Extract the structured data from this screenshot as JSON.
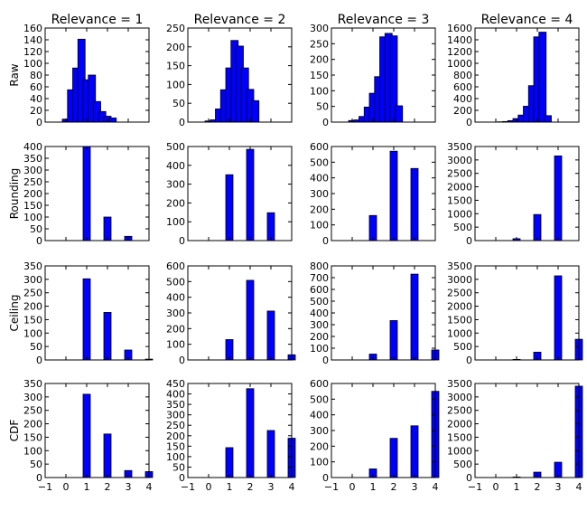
{
  "chart_data": {
    "type": "bar",
    "bar_color": "#0000ff",
    "bar_edge_color": "#000000",
    "grid": false,
    "columns": [
      "Relevance = 1",
      "Relevance = 2",
      "Relevance = 3",
      "Relevance = 4"
    ],
    "rows": [
      "Raw",
      "Rounding",
      "Ceiling",
      "CDF"
    ],
    "xlim": [
      -1,
      4
    ],
    "xticks": [
      -1,
      0,
      1,
      2,
      3,
      4
    ],
    "panels": [
      [
        {
          "ylim": [
            0,
            160
          ],
          "yticks": [
            0,
            20,
            40,
            60,
            80,
            100,
            120,
            140,
            160
          ],
          "bars": [
            {
              "x": 0.0,
              "value": 5
            },
            {
              "x": 0.25,
              "value": 55
            },
            {
              "x": 0.5,
              "value": 92
            },
            {
              "x": 0.75,
              "value": 141
            },
            {
              "x": 1.0,
              "value": 72
            },
            {
              "x": 1.25,
              "value": 80
            },
            {
              "x": 1.5,
              "value": 35
            },
            {
              "x": 1.75,
              "value": 18
            },
            {
              "x": 2.0,
              "value": 10
            },
            {
              "x": 2.25,
              "value": 7
            }
          ]
        },
        {
          "ylim": [
            0,
            250
          ],
          "yticks": [
            0,
            50,
            100,
            150,
            200,
            250
          ],
          "bars": [
            {
              "x": 0.0,
              "value": 3
            },
            {
              "x": 0.25,
              "value": 6
            },
            {
              "x": 0.5,
              "value": 35
            },
            {
              "x": 0.75,
              "value": 86
            },
            {
              "x": 1.0,
              "value": 144
            },
            {
              "x": 1.25,
              "value": 217
            },
            {
              "x": 1.5,
              "value": 202
            },
            {
              "x": 1.75,
              "value": 144
            },
            {
              "x": 2.0,
              "value": 87
            },
            {
              "x": 2.25,
              "value": 57
            }
          ]
        },
        {
          "ylim": [
            0,
            300
          ],
          "yticks": [
            0,
            50,
            100,
            150,
            200,
            250,
            300
          ],
          "bars": [
            {
              "x": 0.0,
              "value": 5
            },
            {
              "x": 0.25,
              "value": 7
            },
            {
              "x": 0.5,
              "value": 18
            },
            {
              "x": 0.75,
              "value": 48
            },
            {
              "x": 1.0,
              "value": 92
            },
            {
              "x": 1.25,
              "value": 145
            },
            {
              "x": 1.5,
              "value": 272
            },
            {
              "x": 1.75,
              "value": 283
            },
            {
              "x": 2.0,
              "value": 275
            },
            {
              "x": 2.25,
              "value": 52
            }
          ]
        },
        {
          "ylim": [
            0,
            1600
          ],
          "yticks": [
            0,
            200,
            400,
            600,
            800,
            1000,
            1200,
            1400,
            1600
          ],
          "bars": [
            {
              "x": 0.0,
              "value": 0
            },
            {
              "x": 0.25,
              "value": 5
            },
            {
              "x": 0.5,
              "value": 10
            },
            {
              "x": 0.75,
              "value": 25
            },
            {
              "x": 1.0,
              "value": 60
            },
            {
              "x": 1.25,
              "value": 120
            },
            {
              "x": 1.5,
              "value": 270
            },
            {
              "x": 1.75,
              "value": 620
            },
            {
              "x": 2.0,
              "value": 1450
            },
            {
              "x": 2.25,
              "value": 1530
            },
            {
              "x": 2.5,
              "value": 110
            }
          ]
        }
      ],
      [
        {
          "ylim": [
            0,
            400
          ],
          "yticks": [
            0,
            50,
            100,
            150,
            200,
            250,
            300,
            350,
            400
          ],
          "bars": [
            {
              "x": 1,
              "value": 400
            },
            {
              "x": 2,
              "value": 100
            },
            {
              "x": 3,
              "value": 18
            }
          ]
        },
        {
          "ylim": [
            0,
            500
          ],
          "yticks": [
            0,
            100,
            200,
            300,
            400,
            500
          ],
          "bars": [
            {
              "x": 1,
              "value": 350
            },
            {
              "x": 2,
              "value": 485
            },
            {
              "x": 3,
              "value": 148
            }
          ]
        },
        {
          "ylim": [
            0,
            600
          ],
          "yticks": [
            0,
            100,
            200,
            300,
            400,
            500,
            600
          ],
          "bars": [
            {
              "x": 1,
              "value": 160
            },
            {
              "x": 2,
              "value": 570
            },
            {
              "x": 3,
              "value": 460
            }
          ]
        },
        {
          "ylim": [
            0,
            3500
          ],
          "yticks": [
            0,
            500,
            1000,
            1500,
            2000,
            2500,
            3000,
            3500
          ],
          "bars": [
            {
              "x": 1,
              "value": 70
            },
            {
              "x": 2,
              "value": 970
            },
            {
              "x": 3,
              "value": 3150
            }
          ]
        }
      ],
      [
        {
          "ylim": [
            0,
            350
          ],
          "yticks": [
            0,
            50,
            100,
            150,
            200,
            250,
            300,
            350
          ],
          "bars": [
            {
              "x": 1,
              "value": 302
            },
            {
              "x": 2,
              "value": 177
            },
            {
              "x": 3,
              "value": 37
            },
            {
              "x": 4,
              "value": 3
            }
          ]
        },
        {
          "ylim": [
            0,
            600
          ],
          "yticks": [
            0,
            100,
            200,
            300,
            400,
            500,
            600
          ],
          "bars": [
            {
              "x": 1,
              "value": 130
            },
            {
              "x": 2,
              "value": 508
            },
            {
              "x": 3,
              "value": 312
            },
            {
              "x": 4,
              "value": 33
            }
          ]
        },
        {
          "ylim": [
            0,
            800
          ],
          "yticks": [
            0,
            100,
            200,
            300,
            400,
            500,
            600,
            700,
            800
          ],
          "bars": [
            {
              "x": 1,
              "value": 50
            },
            {
              "x": 2,
              "value": 335
            },
            {
              "x": 3,
              "value": 730
            },
            {
              "x": 4,
              "value": 85
            }
          ]
        },
        {
          "ylim": [
            0,
            3500
          ],
          "yticks": [
            0,
            500,
            1000,
            1500,
            2000,
            2500,
            3000,
            3500
          ],
          "bars": [
            {
              "x": 1,
              "value": 20
            },
            {
              "x": 2,
              "value": 290
            },
            {
              "x": 3,
              "value": 3130
            },
            {
              "x": 4,
              "value": 770
            }
          ]
        }
      ],
      [
        {
          "ylim": [
            0,
            350
          ],
          "yticks": [
            0,
            50,
            100,
            150,
            200,
            250,
            300,
            350
          ],
          "bars": [
            {
              "x": 1,
              "value": 310
            },
            {
              "x": 2,
              "value": 162
            },
            {
              "x": 3,
              "value": 26
            },
            {
              "x": 4,
              "value": 22
            }
          ]
        },
        {
          "ylim": [
            0,
            450
          ],
          "yticks": [
            0,
            50,
            100,
            150,
            200,
            250,
            300,
            350,
            400,
            450
          ],
          "bars": [
            {
              "x": 1,
              "value": 143
            },
            {
              "x": 2,
              "value": 425
            },
            {
              "x": 3,
              "value": 225
            },
            {
              "x": 4,
              "value": 188
            }
          ]
        },
        {
          "ylim": [
            0,
            600
          ],
          "yticks": [
            0,
            100,
            200,
            300,
            400,
            500,
            600
          ],
          "bars": [
            {
              "x": 1,
              "value": 55
            },
            {
              "x": 2,
              "value": 250
            },
            {
              "x": 3,
              "value": 330
            },
            {
              "x": 4,
              "value": 550
            }
          ]
        },
        {
          "ylim": [
            0,
            3500
          ],
          "yticks": [
            0,
            500,
            1000,
            1500,
            2000,
            2500,
            3000,
            3500
          ],
          "bars": [
            {
              "x": 1,
              "value": 20
            },
            {
              "x": 2,
              "value": 200
            },
            {
              "x": 3,
              "value": 570
            },
            {
              "x": 4,
              "value": 3400
            }
          ]
        }
      ]
    ]
  }
}
